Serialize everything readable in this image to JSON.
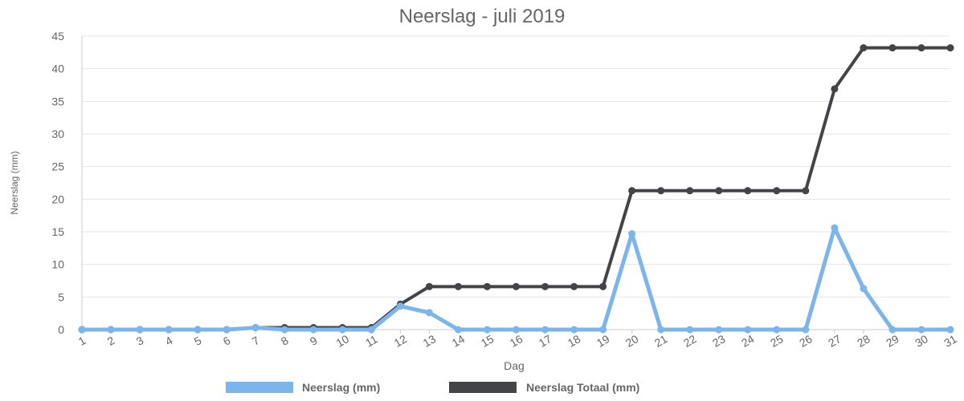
{
  "chart_data": {
    "type": "line",
    "title": "Neerslag - juli 2019",
    "xlabel": "Dag",
    "ylabel": "Neerslag (mm)",
    "ylim": [
      0,
      45
    ],
    "yticks": [
      "0",
      "5",
      "10",
      "15",
      "20",
      "25",
      "30",
      "35",
      "40",
      "45"
    ],
    "categories": [
      "1",
      "2",
      "3",
      "4",
      "5",
      "6",
      "7",
      "8",
      "9",
      "10",
      "11",
      "12",
      "13",
      "14",
      "15",
      "16",
      "17",
      "18",
      "19",
      "20",
      "21",
      "22",
      "23",
      "24",
      "25",
      "26",
      "27",
      "28",
      "29",
      "30",
      "31"
    ],
    "grid": true,
    "legend_position": "bottom",
    "series": [
      {
        "name": "Neerslag (mm)",
        "color": "#7cb5ec",
        "values": [
          0,
          0,
          0,
          0,
          0,
          0,
          0.3,
          0,
          0,
          0,
          0,
          3.6,
          2.6,
          0,
          0,
          0,
          0,
          0,
          0,
          14.7,
          0,
          0,
          0,
          0,
          0,
          0,
          15.6,
          6.3,
          0,
          0,
          0
        ]
      },
      {
        "name": "Neerslag Totaal (mm)",
        "color": "#434348",
        "values": [
          0,
          0,
          0,
          0,
          0,
          0,
          0.3,
          0.3,
          0.3,
          0.3,
          0.3,
          3.9,
          6.6,
          6.6,
          6.6,
          6.6,
          6.6,
          6.6,
          6.6,
          21.3,
          21.3,
          21.3,
          21.3,
          21.3,
          21.3,
          21.3,
          36.9,
          43.2,
          43.2,
          43.2,
          43.2
        ]
      }
    ]
  }
}
